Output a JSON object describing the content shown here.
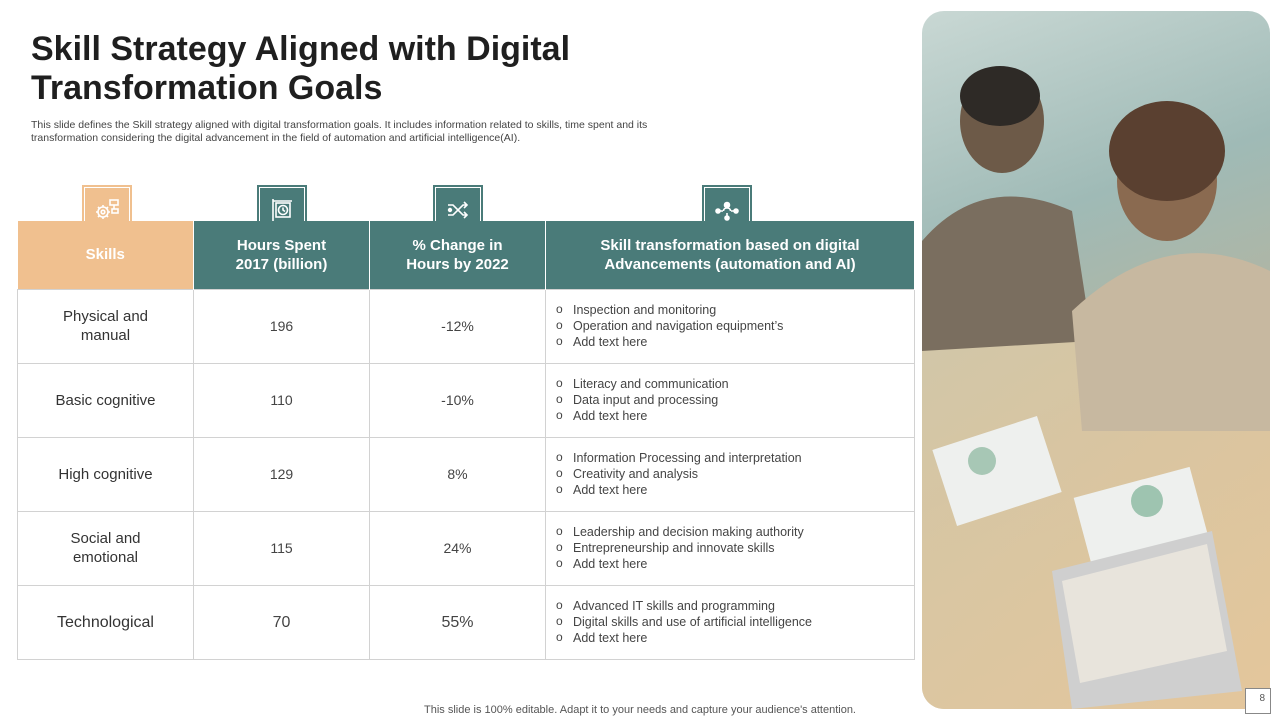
{
  "title": "Skill Strategy Aligned with Digital Transformation Goals",
  "subtitle": "This slide defines the Skill strategy aligned with digital transformation goals. It includes information related to skills, time spent and its transformation considering the digital advancement in the field of automation and artificial intelligence(AI).",
  "headers": {
    "skills": "Skills",
    "hours": "Hours Spent 2017 (billion)",
    "change": "% Change in Hours by 2022",
    "transformation": "Skill transformation based on digital Advancements (automation and AI)"
  },
  "icons": [
    "gear-workflow-icon",
    "clock-signboard-icon",
    "shuffle-arrows-icon",
    "network-people-icon"
  ],
  "rows": [
    {
      "skill": "Physical and manual",
      "hours": "196",
      "change": "-12%",
      "items": [
        "Inspection and monitoring",
        "Operation and navigation equipment’s",
        "Add text here"
      ]
    },
    {
      "skill": "Basic cognitive",
      "hours": "110",
      "change": "-10%",
      "items": [
        "Literacy and communication",
        "Data input and processing",
        "Add text here"
      ]
    },
    {
      "skill": "High cognitive",
      "hours": "129",
      "change": "8%",
      "items": [
        "Information Processing and interpretation",
        "Creativity and analysis",
        "Add text here"
      ]
    },
    {
      "skill": "Social and emotional",
      "hours": "115",
      "change": "24%",
      "items": [
        "Leadership and decision making authority",
        "Entrepreneurship and innovate skills",
        "Add text here"
      ]
    },
    {
      "skill": "Technological",
      "hours": "70",
      "change": "55%",
      "items": [
        "Advanced IT skills and programming",
        "Digital skills and use of artificial intelligence",
        "Add text here"
      ]
    }
  ],
  "footer": "This slide is 100% editable. Adapt it to your needs and capture your audience's attention.",
  "page_number": "8",
  "colors": {
    "accent_orange": "#f0c08f",
    "accent_teal": "#4a7b79"
  }
}
